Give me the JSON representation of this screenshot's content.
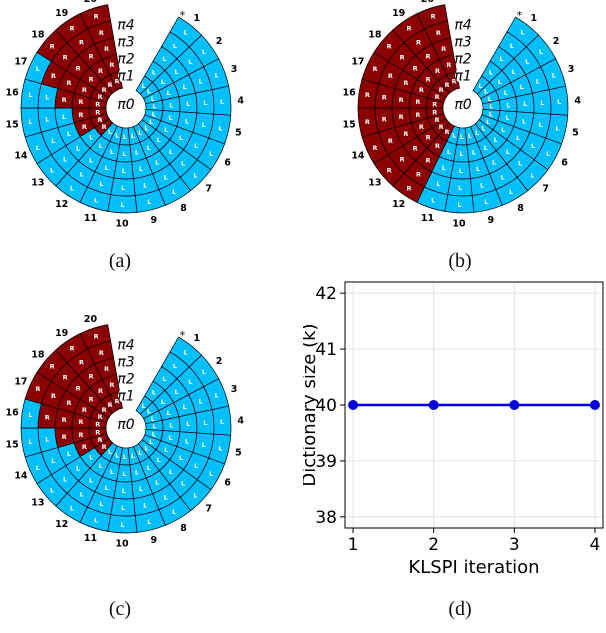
{
  "captions": {
    "a": "(a)",
    "b": "(b)",
    "c": "(c)",
    "d": "(d)"
  },
  "policy_plots": {
    "colors": {
      "R": "#8b0000",
      "L": "#00bfff",
      "grid": "#000000",
      "text": "#ffffff"
    },
    "state_labels": [
      "1",
      "2",
      "3",
      "4",
      "5",
      "6",
      "7",
      "8",
      "9",
      "10",
      "11",
      "12",
      "13",
      "14",
      "15",
      "16",
      "17",
      "18",
      "19",
      "20"
    ],
    "pi_labels": [
      "π0",
      "π1",
      "π2",
      "π3",
      "π4"
    ],
    "action_labels": {
      "R": "R",
      "L": "L"
    },
    "goal_marker": "*",
    "boundaries": {
      "a": [
        12,
        13,
        15,
        16,
        17
      ],
      "b": [
        11,
        11,
        11,
        11,
        11
      ],
      "c": [
        12,
        13,
        14,
        15,
        16
      ]
    }
  },
  "chart_data": {
    "type": "line",
    "title": "",
    "xlabel": "KLSPI iteration",
    "ylabel": "Dictionary size (k)",
    "x": [
      1,
      2,
      3,
      4
    ],
    "series": [
      {
        "values": [
          40,
          40,
          40,
          40
        ]
      }
    ],
    "xlim": [
      0.9,
      4.1
    ],
    "ylim": [
      37.8,
      42.2
    ],
    "xticks": [
      "1",
      "2",
      "3",
      "4"
    ],
    "yticks": [
      "38",
      "39",
      "40",
      "41",
      "42"
    ],
    "grid": true,
    "color": "#0000dd"
  }
}
